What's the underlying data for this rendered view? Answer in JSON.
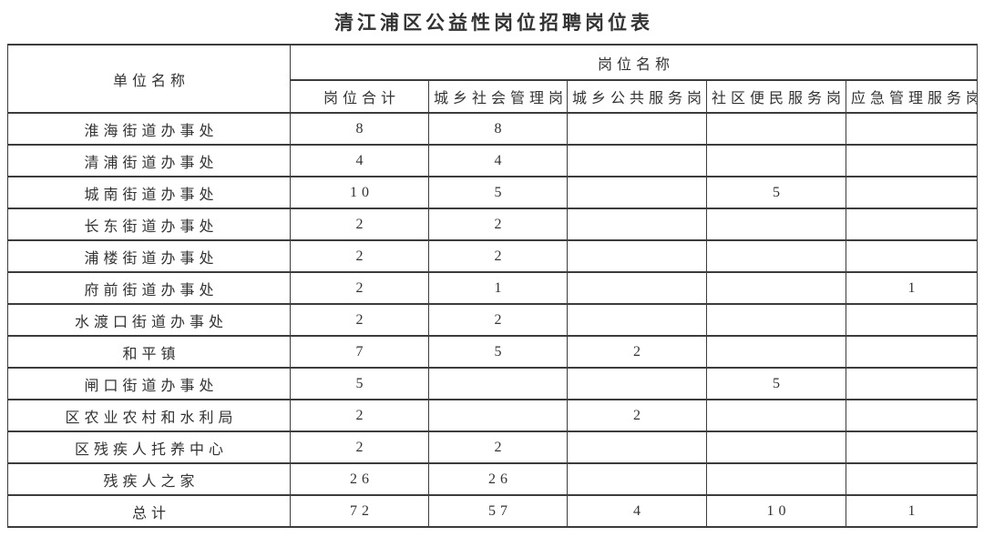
{
  "title": "清江浦区公益性岗位招聘岗位表",
  "table": {
    "unit_header": "单位名称",
    "position_group_header": "岗位名称",
    "columns": [
      "岗位合计",
      "城乡社会管理岗",
      "城乡公共服务岗",
      "社区便民服务岗",
      "应急管理服务岗"
    ],
    "rows": [
      {
        "unit": "淮海街道办事处",
        "values": [
          "8",
          "8",
          "",
          "",
          ""
        ]
      },
      {
        "unit": "清浦街道办事处",
        "values": [
          "4",
          "4",
          "",
          "",
          ""
        ]
      },
      {
        "unit": "城南街道办事处",
        "values": [
          "10",
          "5",
          "",
          "5",
          ""
        ]
      },
      {
        "unit": "长东街道办事处",
        "values": [
          "2",
          "2",
          "",
          "",
          ""
        ]
      },
      {
        "unit": "浦楼街道办事处",
        "values": [
          "2",
          "2",
          "",
          "",
          ""
        ]
      },
      {
        "unit": "府前街道办事处",
        "values": [
          "2",
          "1",
          "",
          "",
          "1"
        ]
      },
      {
        "unit": "水渡口街道办事处",
        "values": [
          "2",
          "2",
          "",
          "",
          ""
        ]
      },
      {
        "unit": "和平镇",
        "values": [
          "7",
          "5",
          "2",
          "",
          ""
        ]
      },
      {
        "unit": "闸口街道办事处",
        "values": [
          "5",
          "",
          "",
          "5",
          ""
        ]
      },
      {
        "unit": "区农业农村和水利局",
        "values": [
          "2",
          "",
          "2",
          "",
          ""
        ]
      },
      {
        "unit": "区残疾人托养中心",
        "values": [
          "2",
          "2",
          "",
          "",
          ""
        ]
      },
      {
        "unit": "残疾人之家",
        "values": [
          "26",
          "26",
          "",
          "",
          ""
        ]
      },
      {
        "unit": "总计",
        "values": [
          "72",
          "57",
          "4",
          "10",
          "1"
        ]
      }
    ]
  },
  "colors": {
    "background": "#ffffff",
    "border": "#3c3c3c",
    "text": "#333333"
  }
}
